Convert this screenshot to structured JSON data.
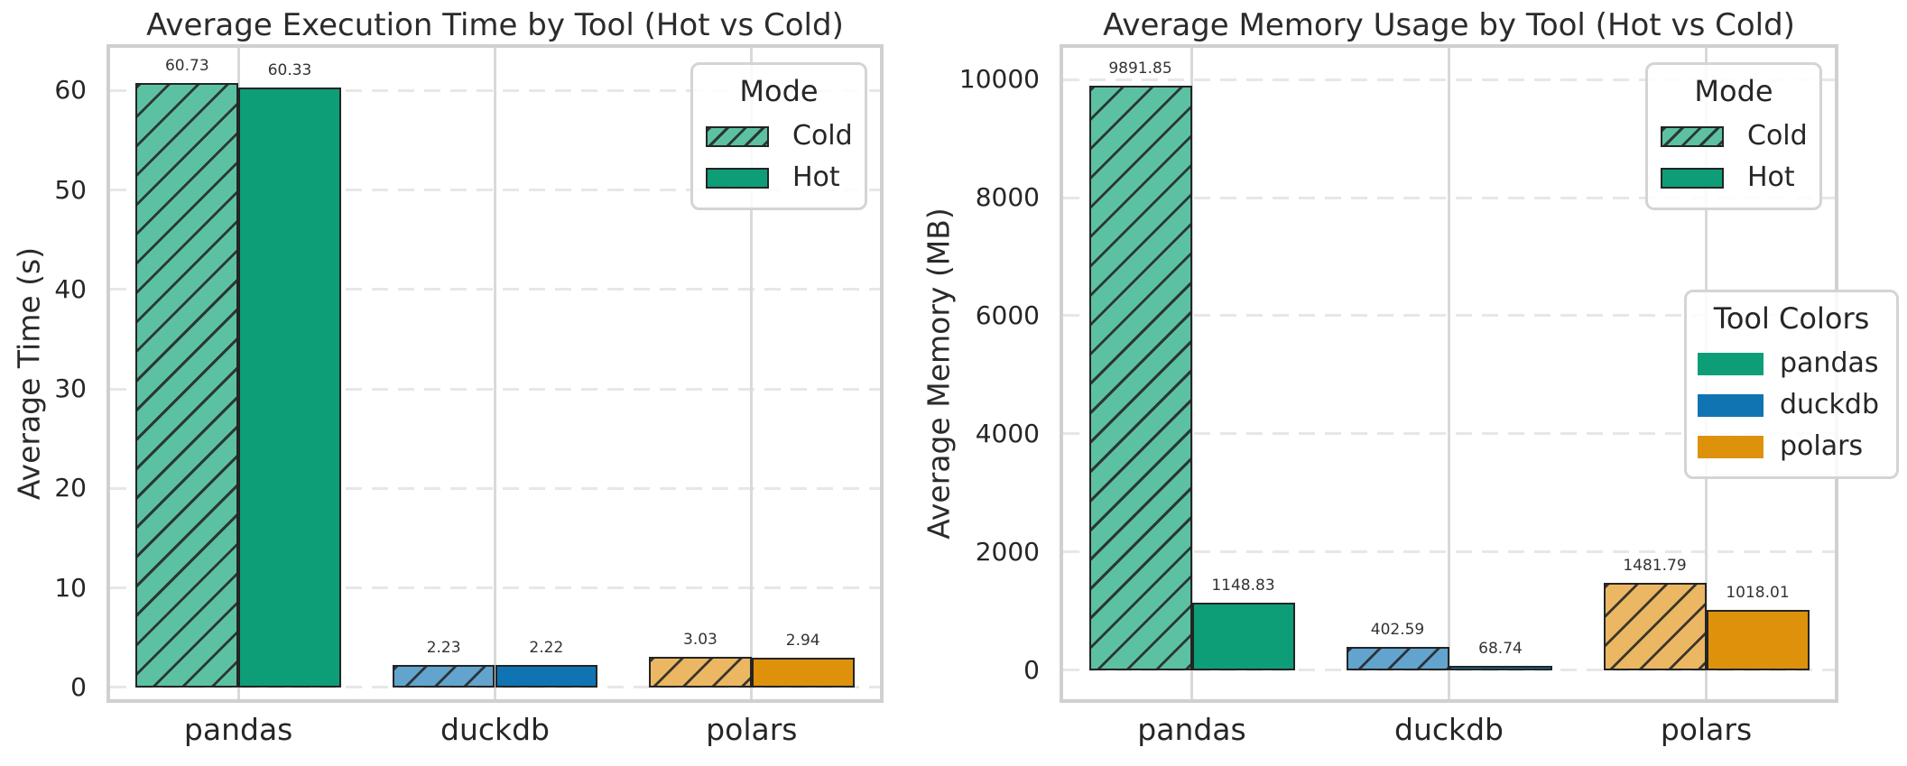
{
  "colors": {
    "pandas": {
      "hot": "#0d9e78",
      "cold": "#5cc1a2"
    },
    "duckdb": {
      "hot": "#1074b2",
      "cold": "#62a4ce"
    },
    "polars": {
      "hot": "#de920c",
      "cold": "#ebb763"
    },
    "edge": "#242424",
    "grid_horizontal": "#e7e7e7",
    "grid_vertical": "#d9d9d9",
    "spine": "#d0d0d0",
    "text": "#262626"
  },
  "chart_data": [
    {
      "type": "bar",
      "title": "Average Execution Time by Tool (Hot vs Cold)",
      "xlabel": "",
      "ylabel": "Average Time (s)",
      "categories": [
        "pandas",
        "duckdb",
        "polars"
      ],
      "series": [
        {
          "name": "Cold",
          "style": "cold",
          "values": [
            60.73,
            2.23,
            3.03
          ]
        },
        {
          "name": "Hot",
          "style": "hot",
          "values": [
            60.33,
            2.22,
            2.94
          ]
        }
      ],
      "bar_labels": [
        [
          "60.73",
          "2.23",
          "3.03"
        ],
        [
          "60.33",
          "2.22",
          "2.94"
        ]
      ],
      "yticks": [
        0,
        10,
        20,
        30,
        40,
        50,
        60
      ],
      "ylim": [
        -1.2,
        64.3
      ],
      "grid": true,
      "legend": {
        "title": "Mode",
        "position": "upper right",
        "entries": [
          "Cold",
          "Hot"
        ]
      }
    },
    {
      "type": "bar",
      "title": "Average Memory Usage by Tool (Hot vs Cold)",
      "xlabel": "",
      "ylabel": "Average Memory (MB)",
      "categories": [
        "pandas",
        "duckdb",
        "polars"
      ],
      "series": [
        {
          "name": "Cold",
          "style": "cold",
          "values": [
            9891.85,
            402.59,
            1481.79
          ]
        },
        {
          "name": "Hot",
          "style": "hot",
          "values": [
            1148.83,
            68.74,
            1018.01
          ]
        }
      ],
      "bar_labels": [
        [
          "9891.85",
          "402.59",
          "1481.79"
        ],
        [
          "1148.83",
          "68.74",
          "1018.01"
        ]
      ],
      "yticks": [
        0,
        2000,
        4000,
        6000,
        8000,
        10000
      ],
      "ylim": [
        -490,
        10535
      ],
      "grid": true,
      "legend": {
        "title": "Mode",
        "position": "upper right",
        "entries": [
          "Cold",
          "Hot"
        ]
      },
      "legend2": {
        "title": "Tool Colors",
        "position": "center right",
        "entries": [
          "pandas",
          "duckdb",
          "polars"
        ]
      }
    }
  ]
}
